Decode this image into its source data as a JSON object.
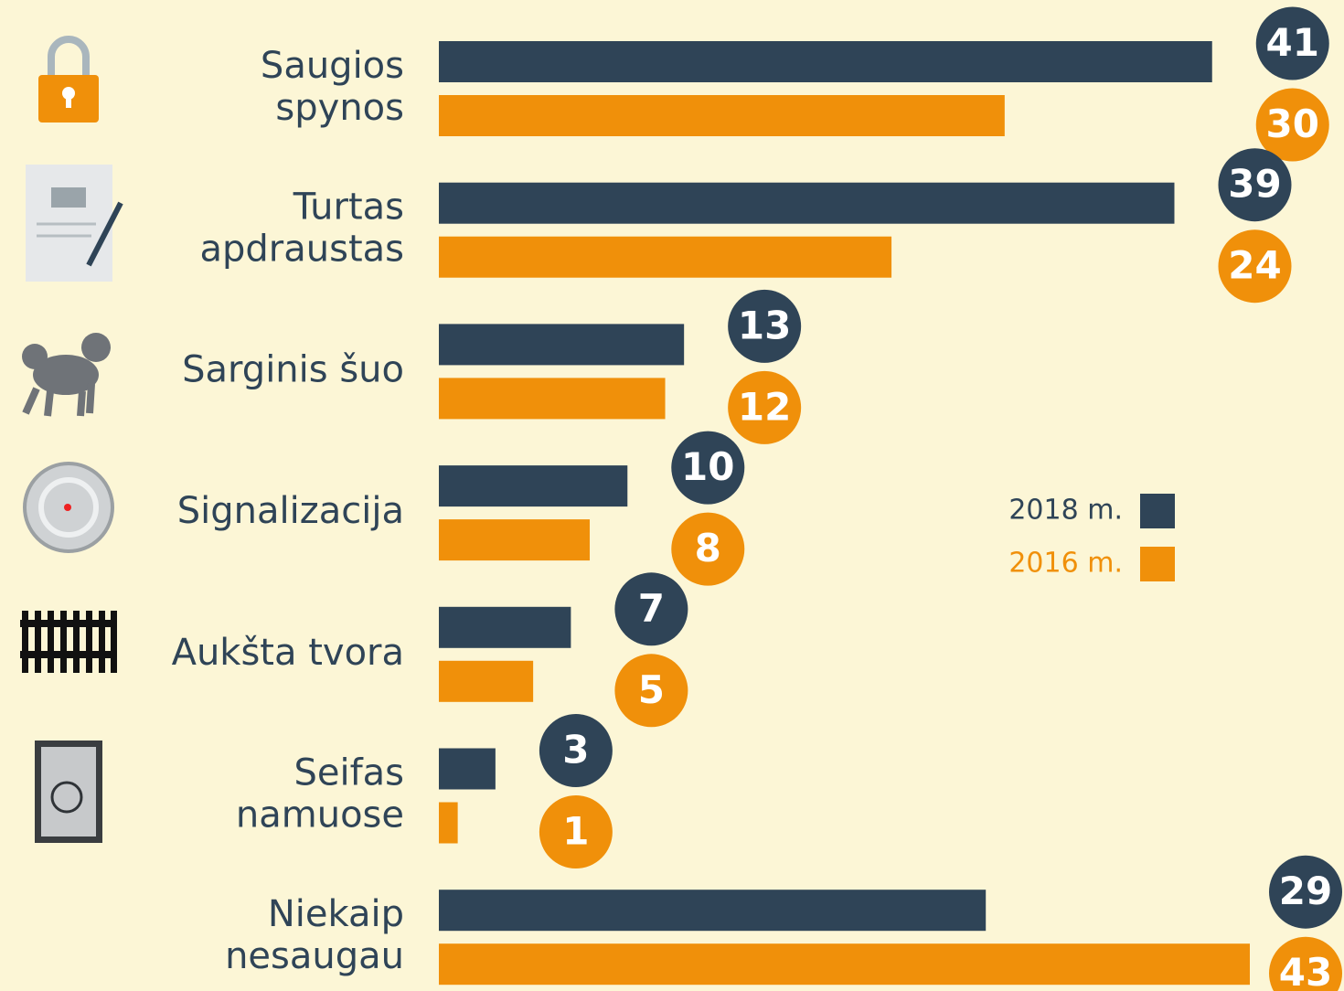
{
  "chart_data": {
    "type": "bar",
    "orientation": "horizontal",
    "categories": [
      [
        "Saugios",
        "spynos"
      ],
      [
        "Turtas",
        "apdraustas"
      ],
      [
        "Sarginis šuo"
      ],
      [
        "Signalizacija"
      ],
      [
        "Aukšta tvora"
      ],
      [
        "Seifas",
        "namuose"
      ],
      [
        "Niekaip",
        "nesaugau"
      ]
    ],
    "series": [
      {
        "name": "2018 m.",
        "color": "#2f4457",
        "values": [
          41,
          39,
          13,
          10,
          7,
          3,
          29
        ]
      },
      {
        "name": "2016 m.",
        "color": "#f0900a",
        "values": [
          30,
          24,
          12,
          8,
          5,
          1,
          43
        ]
      }
    ]
  }
}
